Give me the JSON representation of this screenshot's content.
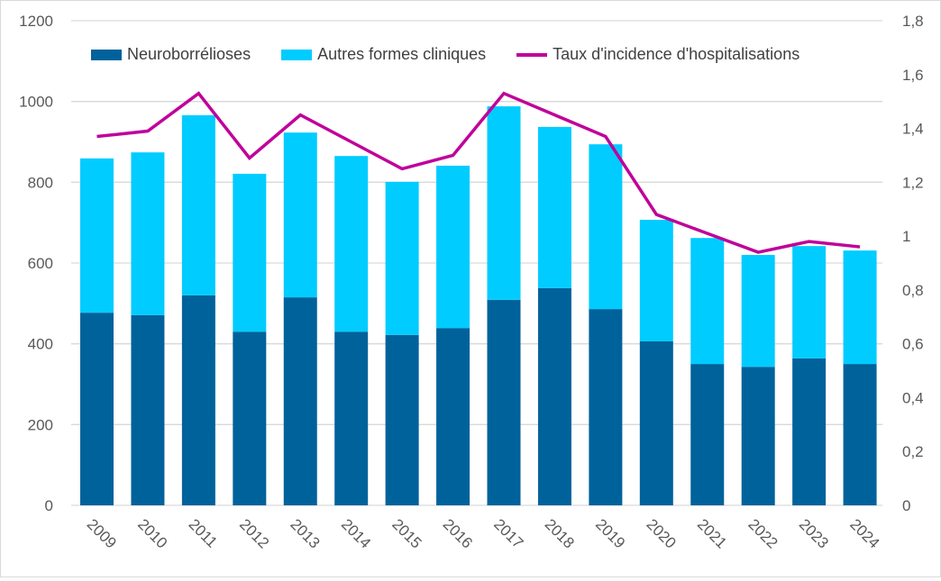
{
  "chart_data": {
    "type": "bar",
    "stacked": true,
    "categories": [
      "2009",
      "2010",
      "2011",
      "2012",
      "2013",
      "2014",
      "2015",
      "2016",
      "2017",
      "2018",
      "2019",
      "2020",
      "2021",
      "2022",
      "2023",
      "2024"
    ],
    "series": [
      {
        "name": "Neuroborrélioses",
        "type": "bar",
        "axis": "left",
        "color": "#00629B",
        "values": [
          477,
          471,
          520,
          430,
          515,
          430,
          422,
          439,
          509,
          538,
          486,
          406,
          350,
          343,
          364,
          350
        ]
      },
      {
        "name": "Autres formes cliniques",
        "type": "bar",
        "axis": "left",
        "color": "#00CCFF",
        "values": [
          382,
          403,
          446,
          391,
          408,
          435,
          379,
          402,
          479,
          399,
          408,
          301,
          312,
          277,
          278,
          281
        ]
      },
      {
        "name": "Taux d'incidence d'hospitalisations",
        "type": "line",
        "axis": "right",
        "color": "#C0009A",
        "values": [
          1.37,
          1.39,
          1.53,
          1.29,
          1.45,
          1.35,
          1.25,
          1.3,
          1.53,
          1.45,
          1.37,
          1.08,
          1.01,
          0.94,
          0.98,
          0.96
        ]
      }
    ],
    "y_left": {
      "range": [
        0,
        1200
      ],
      "ticks": [
        "0",
        "200",
        "400",
        "600",
        "800",
        "1000",
        "1200"
      ]
    },
    "y_right": {
      "range": [
        0,
        1.8
      ],
      "ticks": [
        "0",
        "0,2",
        "0,4",
        "0,6",
        "0,8",
        "1",
        "1,2",
        "1,4",
        "1,6",
        "1,8"
      ]
    },
    "grid": true,
    "legend_position": "top"
  }
}
